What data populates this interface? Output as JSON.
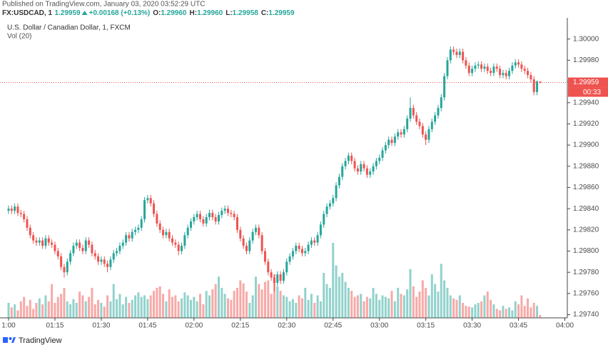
{
  "header": {
    "published": "Published on TradingView.com, January 03, 2020 03:52:29 UTC",
    "symbol": "FX:USDCAD, 1",
    "last": "1.29959",
    "change": "+0.00168 (+0.13%)",
    "ohlc": [
      {
        "label": "O:",
        "value": "1.29960"
      },
      {
        "label": "H:",
        "value": "1.29960"
      },
      {
        "label": "L:",
        "value": "1.29958"
      },
      {
        "label": "C:",
        "value": "1.29959"
      }
    ]
  },
  "chart_data": {
    "type": "candlestick",
    "title": "U.S. Dollar / Canadian Dollar, 1, FXCM",
    "volume_title": "Vol (20)",
    "up_color": "#26a69a",
    "down_color": "#ef5350",
    "grid": false,
    "ylim": [
      1.29737,
      1.3002
    ],
    "yticks": [
      {
        "value": 1.3,
        "label": "1.30000"
      },
      {
        "value": 1.2998,
        "label": "1.29980"
      },
      {
        "value": 1.2996,
        "label": "1.29960"
      },
      {
        "value": 1.2994,
        "label": "1.29940"
      },
      {
        "value": 1.2992,
        "label": "1.29920"
      },
      {
        "value": 1.299,
        "label": "1.29900"
      },
      {
        "value": 1.2988,
        "label": "1.29880"
      },
      {
        "value": 1.2986,
        "label": "1.29860"
      },
      {
        "value": 1.2984,
        "label": "1.29840"
      },
      {
        "value": 1.2982,
        "label": "1.29820"
      },
      {
        "value": 1.298,
        "label": "1.29800"
      },
      {
        "value": 1.2978,
        "label": "1.29780"
      },
      {
        "value": 1.2976,
        "label": "1.29760"
      },
      {
        "value": 1.2974,
        "label": "1.29740"
      }
    ],
    "xlim": [
      -2.77,
      180.8
    ],
    "xticks": [
      {
        "value": 0,
        "label": "1:00"
      },
      {
        "value": 15,
        "label": "01:15"
      },
      {
        "value": 30,
        "label": "01:30"
      },
      {
        "value": 45,
        "label": "01:45"
      },
      {
        "value": 60,
        "label": "02:00"
      },
      {
        "value": 75,
        "label": "02:15"
      },
      {
        "value": 90,
        "label": "02:30"
      },
      {
        "value": 105,
        "label": "02:45"
      },
      {
        "value": 120,
        "label": "03:00"
      },
      {
        "value": 135,
        "label": "03:15"
      },
      {
        "value": 150,
        "label": "03:30"
      },
      {
        "value": 165,
        "label": "03:45"
      },
      {
        "value": 180,
        "label": "04:00"
      }
    ],
    "last_price": 1.29959,
    "countdown": "00:33",
    "ohlc": [
      [
        1.29838,
        1.29843,
        1.29835,
        1.2984
      ],
      [
        1.2984,
        1.29843,
        1.29835,
        1.29838
      ],
      [
        1.29838,
        1.29845,
        1.29835,
        1.29842
      ],
      [
        1.29842,
        1.29845,
        1.29833,
        1.29836
      ],
      [
        1.29836,
        1.29839,
        1.29832,
        1.29835
      ],
      [
        1.29835,
        1.29838,
        1.29827,
        1.2983
      ],
      [
        1.2983,
        1.29833,
        1.29819,
        1.29822
      ],
      [
        1.29822,
        1.29825,
        1.29812,
        1.29815
      ],
      [
        1.29815,
        1.29818,
        1.29807,
        1.2981
      ],
      [
        1.2981,
        1.29813,
        1.29805,
        1.29808
      ],
      [
        1.29808,
        1.29813,
        1.29805,
        1.2981
      ],
      [
        1.2981,
        1.29813,
        1.29802,
        1.29805
      ],
      [
        1.29805,
        1.29815,
        1.29802,
        1.29812
      ],
      [
        1.29812,
        1.29815,
        1.29805,
        1.29808
      ],
      [
        1.29808,
        1.29811,
        1.29803,
        1.29806
      ],
      [
        1.29806,
        1.29809,
        1.29797,
        1.298
      ],
      [
        1.298,
        1.29803,
        1.29792,
        1.29795
      ],
      [
        1.29795,
        1.29798,
        1.29782,
        1.29785
      ],
      [
        1.29785,
        1.29788,
        1.29775,
        1.2978
      ],
      [
        1.2978,
        1.29793,
        1.29777,
        1.2979
      ],
      [
        1.2979,
        1.29801,
        1.29787,
        1.29798
      ],
      [
        1.29798,
        1.29808,
        1.29795,
        1.29805
      ],
      [
        1.29805,
        1.29811,
        1.29802,
        1.29808
      ],
      [
        1.29808,
        1.29811,
        1.298,
        1.29803
      ],
      [
        1.29803,
        1.29806,
        1.29797,
        1.298
      ],
      [
        1.298,
        1.29813,
        1.29797,
        1.2981
      ],
      [
        1.2981,
        1.29813,
        1.29803,
        1.29806
      ],
      [
        1.29806,
        1.29809,
        1.29795,
        1.29798
      ],
      [
        1.29798,
        1.29801,
        1.29792,
        1.29795
      ],
      [
        1.29795,
        1.29798,
        1.29787,
        1.2979
      ],
      [
        1.2979,
        1.29795,
        1.29787,
        1.29792
      ],
      [
        1.29792,
        1.29795,
        1.29785,
        1.29788
      ],
      [
        1.29788,
        1.29791,
        1.2978,
        1.29785
      ],
      [
        1.29785,
        1.29795,
        1.29782,
        1.29792
      ],
      [
        1.29792,
        1.29801,
        1.29789,
        1.29798
      ],
      [
        1.29798,
        1.29803,
        1.29795,
        1.298
      ],
      [
        1.298,
        1.29808,
        1.29797,
        1.29805
      ],
      [
        1.29805,
        1.29811,
        1.29802,
        1.29808
      ],
      [
        1.29808,
        1.29818,
        1.29805,
        1.29815
      ],
      [
        1.29815,
        1.29818,
        1.29809,
        1.29812
      ],
      [
        1.29812,
        1.29821,
        1.29809,
        1.29818
      ],
      [
        1.29818,
        1.29823,
        1.29815,
        1.2982
      ],
      [
        1.2982,
        1.29825,
        1.29817,
        1.29822
      ],
      [
        1.29822,
        1.29833,
        1.29819,
        1.2983
      ],
      [
        1.2983,
        1.29851,
        1.29827,
        1.29848
      ],
      [
        1.29848,
        1.29853,
        1.29845,
        1.2985
      ],
      [
        1.2985,
        1.29853,
        1.29842,
        1.29845
      ],
      [
        1.29845,
        1.29848,
        1.29832,
        1.29835
      ],
      [
        1.29835,
        1.29838,
        1.29823,
        1.29826
      ],
      [
        1.29826,
        1.29829,
        1.29817,
        1.2982
      ],
      [
        1.2982,
        1.29823,
        1.29812,
        1.29815
      ],
      [
        1.29815,
        1.29821,
        1.29812,
        1.29818
      ],
      [
        1.29818,
        1.29821,
        1.29809,
        1.29812
      ],
      [
        1.29812,
        1.29815,
        1.29805,
        1.29808
      ],
      [
        1.29808,
        1.29811,
        1.29803,
        1.29806
      ],
      [
        1.29806,
        1.29809,
        1.29796,
        1.298
      ],
      [
        1.298,
        1.29808,
        1.29797,
        1.29805
      ],
      [
        1.29805,
        1.29818,
        1.29802,
        1.29815
      ],
      [
        1.29815,
        1.29825,
        1.29812,
        1.29822
      ],
      [
        1.29822,
        1.29831,
        1.29819,
        1.29828
      ],
      [
        1.29828,
        1.29835,
        1.29825,
        1.29832
      ],
      [
        1.29832,
        1.29838,
        1.29829,
        1.29835
      ],
      [
        1.29835,
        1.29838,
        1.29827,
        1.2983
      ],
      [
        1.2983,
        1.29833,
        1.29823,
        1.29826
      ],
      [
        1.29826,
        1.29835,
        1.29823,
        1.29832
      ],
      [
        1.29832,
        1.29839,
        1.29829,
        1.29836
      ],
      [
        1.29836,
        1.29839,
        1.29829,
        1.29832
      ],
      [
        1.29832,
        1.29835,
        1.29825,
        1.29828
      ],
      [
        1.29828,
        1.29837,
        1.29825,
        1.29834
      ],
      [
        1.29834,
        1.29841,
        1.29831,
        1.29838
      ],
      [
        1.29838,
        1.29843,
        1.29835,
        1.2984
      ],
      [
        1.2984,
        1.29843,
        1.29833,
        1.29836
      ],
      [
        1.29836,
        1.29839,
        1.29832,
        1.29835
      ],
      [
        1.29835,
        1.29838,
        1.29829,
        1.29832
      ],
      [
        1.29832,
        1.29835,
        1.29817,
        1.2982
      ],
      [
        1.2982,
        1.29823,
        1.29809,
        1.29812
      ],
      [
        1.29812,
        1.29815,
        1.29802,
        1.29805
      ],
      [
        1.29805,
        1.29808,
        1.29797,
        1.298
      ],
      [
        1.298,
        1.29813,
        1.29797,
        1.2981
      ],
      [
        1.2981,
        1.29821,
        1.29807,
        1.29818
      ],
      [
        1.29818,
        1.29825,
        1.29815,
        1.29822
      ],
      [
        1.29822,
        1.29825,
        1.29812,
        1.29815
      ],
      [
        1.29815,
        1.29818,
        1.29797,
        1.298
      ],
      [
        1.298,
        1.29803,
        1.29787,
        1.2979
      ],
      [
        1.2979,
        1.29793,
        1.29777,
        1.2978
      ],
      [
        1.2978,
        1.29783,
        1.29772,
        1.29775
      ],
      [
        1.29775,
        1.29778,
        1.29762,
        1.2977
      ],
      [
        1.2977,
        1.29781,
        1.29767,
        1.29778
      ],
      [
        1.29778,
        1.29781,
        1.29769,
        1.29772
      ],
      [
        1.29772,
        1.29783,
        1.29769,
        1.2978
      ],
      [
        1.2978,
        1.29793,
        1.29777,
        1.2979
      ],
      [
        1.2979,
        1.29798,
        1.29787,
        1.29795
      ],
      [
        1.29795,
        1.29803,
        1.29792,
        1.298
      ],
      [
        1.298,
        1.29808,
        1.29797,
        1.29805
      ],
      [
        1.29805,
        1.29808,
        1.29799,
        1.29802
      ],
      [
        1.29802,
        1.29805,
        1.29795,
        1.29798
      ],
      [
        1.29798,
        1.29803,
        1.29795,
        1.298
      ],
      [
        1.298,
        1.29809,
        1.29797,
        1.29806
      ],
      [
        1.29806,
        1.29813,
        1.29803,
        1.2981
      ],
      [
        1.2981,
        1.29813,
        1.29805,
        1.29808
      ],
      [
        1.29808,
        1.29818,
        1.29805,
        1.29815
      ],
      [
        1.29815,
        1.29828,
        1.29812,
        1.29825
      ],
      [
        1.29825,
        1.29838,
        1.29822,
        1.29835
      ],
      [
        1.29835,
        1.29845,
        1.29832,
        1.29842
      ],
      [
        1.29842,
        1.29848,
        1.29839,
        1.29845
      ],
      [
        1.29845,
        1.29853,
        1.29842,
        1.2985
      ],
      [
        1.2985,
        1.29865,
        1.29847,
        1.29862
      ],
      [
        1.29862,
        1.29873,
        1.29859,
        1.2987
      ],
      [
        1.2987,
        1.29883,
        1.29867,
        1.2988
      ],
      [
        1.2988,
        1.29888,
        1.29877,
        1.29885
      ],
      [
        1.29885,
        1.29893,
        1.29882,
        1.2989
      ],
      [
        1.2989,
        1.29893,
        1.29882,
        1.29885
      ],
      [
        1.29885,
        1.29888,
        1.29875,
        1.29878
      ],
      [
        1.29878,
        1.29881,
        1.29872,
        1.29875
      ],
      [
        1.29875,
        1.29885,
        1.29872,
        1.29882
      ],
      [
        1.29882,
        1.29885,
        1.29875,
        1.29878
      ],
      [
        1.29878,
        1.29881,
        1.29869,
        1.29872
      ],
      [
        1.29872,
        1.29878,
        1.29869,
        1.29875
      ],
      [
        1.29875,
        1.29883,
        1.29872,
        1.2988
      ],
      [
        1.2988,
        1.29888,
        1.29877,
        1.29885
      ],
      [
        1.29885,
        1.29891,
        1.29882,
        1.29888
      ],
      [
        1.29888,
        1.29898,
        1.29885,
        1.29895
      ],
      [
        1.29895,
        1.29903,
        1.29892,
        1.299
      ],
      [
        1.299,
        1.29908,
        1.29897,
        1.29905
      ],
      [
        1.29905,
        1.29908,
        1.29899,
        1.29902
      ],
      [
        1.29902,
        1.29911,
        1.29899,
        1.29908
      ],
      [
        1.29908,
        1.29915,
        1.29905,
        1.29912
      ],
      [
        1.29912,
        1.29915,
        1.29907,
        1.2991
      ],
      [
        1.2991,
        1.29918,
        1.29907,
        1.29915
      ],
      [
        1.29915,
        1.29928,
        1.29912,
        1.29925
      ],
      [
        1.29925,
        1.29945,
        1.29922,
        1.29935
      ],
      [
        1.29935,
        1.29938,
        1.29925,
        1.29928
      ],
      [
        1.29928,
        1.29931,
        1.29919,
        1.29922
      ],
      [
        1.29922,
        1.29925,
        1.29915,
        1.29918
      ],
      [
        1.29918,
        1.29921,
        1.29907,
        1.2991
      ],
      [
        1.2991,
        1.29913,
        1.299,
        1.29905
      ],
      [
        1.29905,
        1.29918,
        1.29902,
        1.29915
      ],
      [
        1.29915,
        1.29925,
        1.29912,
        1.29922
      ],
      [
        1.29922,
        1.29931,
        1.29919,
        1.29928
      ],
      [
        1.29928,
        1.29938,
        1.29925,
        1.29935
      ],
      [
        1.29935,
        1.29948,
        1.29932,
        1.29945
      ],
      [
        1.29945,
        1.29968,
        1.29942,
        1.29965
      ],
      [
        1.29965,
        1.29983,
        1.29962,
        1.2998
      ],
      [
        1.2998,
        1.29993,
        1.29977,
        1.2999
      ],
      [
        1.2999,
        1.29993,
        1.29985,
        1.29988
      ],
      [
        1.29988,
        1.29991,
        1.29982,
        1.29985
      ],
      [
        1.29985,
        1.29991,
        1.29982,
        1.29988
      ],
      [
        1.29988,
        1.29991,
        1.29977,
        1.2998
      ],
      [
        1.2998,
        1.29983,
        1.29972,
        1.29975
      ],
      [
        1.29975,
        1.29978,
        1.29965,
        1.29968
      ],
      [
        1.29968,
        1.29975,
        1.29965,
        1.29972
      ],
      [
        1.29972,
        1.29978,
        1.29969,
        1.29975
      ],
      [
        1.29975,
        1.29979,
        1.29972,
        1.29976
      ],
      [
        1.29976,
        1.29979,
        1.29969,
        1.29972
      ],
      [
        1.29972,
        1.29977,
        1.29969,
        1.29974
      ],
      [
        1.29974,
        1.29977,
        1.29967,
        1.2997
      ],
      [
        1.2997,
        1.29973,
        1.29965,
        1.29968
      ],
      [
        1.29968,
        1.29977,
        1.29965,
        1.29974
      ],
      [
        1.29974,
        1.29977,
        1.29969,
        1.29972
      ],
      [
        1.29972,
        1.29975,
        1.29963,
        1.29966
      ],
      [
        1.29966,
        1.29971,
        1.29963,
        1.29968
      ],
      [
        1.29968,
        1.29971,
        1.29962,
        1.29965
      ],
      [
        1.29965,
        1.29973,
        1.29962,
        1.2997
      ],
      [
        1.2997,
        1.29978,
        1.29967,
        1.29975
      ],
      [
        1.29975,
        1.29981,
        1.29972,
        1.29978
      ],
      [
        1.29978,
        1.29981,
        1.29973,
        1.29976
      ],
      [
        1.29976,
        1.29979,
        1.29969,
        1.29972
      ],
      [
        1.29972,
        1.29975,
        1.29967,
        1.2997
      ],
      [
        1.2997,
        1.29973,
        1.29963,
        1.29966
      ],
      [
        1.29966,
        1.29969,
        1.29959,
        1.29962
      ],
      [
        1.29962,
        1.29965,
        1.29947,
        1.2995
      ],
      [
        1.2995,
        1.29961,
        1.29947,
        1.2996
      ],
      [
        1.2996,
        1.2996,
        1.29958,
        1.29959
      ]
    ],
    "volume": [
      20,
      14,
      18,
      10,
      22,
      28,
      16,
      24,
      12,
      20,
      26,
      18,
      30,
      22,
      45,
      20,
      28,
      32,
      40,
      22,
      18,
      25,
      20,
      35,
      30,
      22,
      28,
      40,
      18,
      24,
      20,
      15,
      30,
      22,
      45,
      25,
      32,
      18,
      28,
      20,
      24,
      30,
      34,
      28,
      30,
      25,
      30,
      36,
      40,
      42,
      32,
      22,
      38,
      28,
      30,
      22,
      26,
      34,
      30,
      24,
      28,
      22,
      32,
      18,
      36,
      30,
      38,
      45,
      55,
      40,
      32,
      26,
      24,
      36,
      40,
      50,
      46,
      35,
      20,
      30,
      55,
      45,
      38,
      48,
      50,
      32,
      58,
      42,
      36,
      30,
      28,
      22,
      25,
      20,
      30,
      26,
      40,
      24,
      32,
      20,
      30,
      22,
      60,
      45,
      40,
      100,
      70,
      55,
      60,
      48,
      40,
      36,
      28,
      30,
      32,
      22,
      28,
      26,
      40,
      32,
      24,
      30,
      28,
      26,
      36,
      22,
      40,
      32,
      30,
      38,
      65,
      42,
      28,
      35,
      50,
      40,
      30,
      58,
      45,
      35,
      72,
      50,
      40,
      30,
      26,
      24,
      30,
      20,
      16,
      15,
      14,
      18,
      20,
      22,
      30,
      35,
      24,
      18,
      12,
      10,
      16,
      12,
      14,
      10,
      22,
      18,
      30,
      16,
      26,
      14,
      20,
      16,
      4
    ]
  },
  "footer": {
    "brand": "TradingView"
  }
}
